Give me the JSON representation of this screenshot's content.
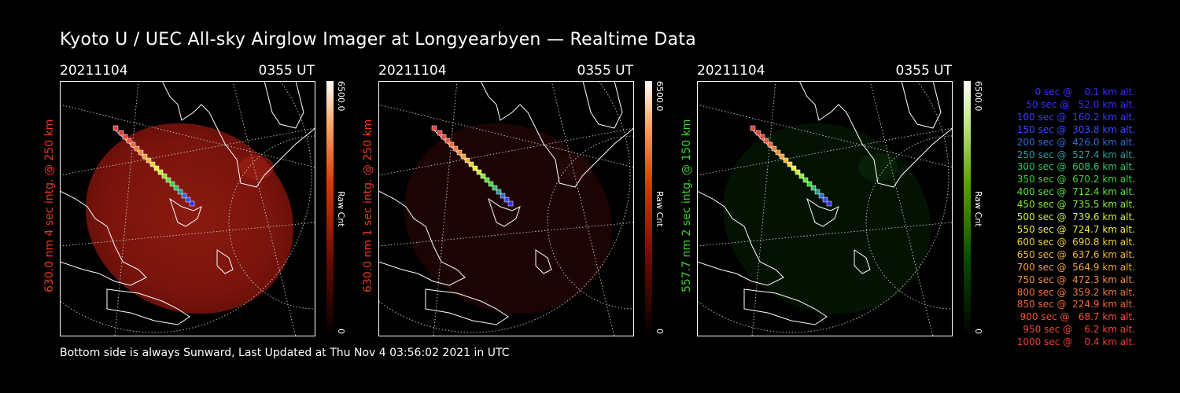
{
  "title": "Kyoto U / UEC All-sky Airglow Imager at Longyearbyen — Realtime Data",
  "footer": "Bottom side is always Sunward, Last Updated at Thu Nov  4 03:56:02 2021 in UTC",
  "panels": [
    {
      "date": "20211104",
      "time": "0355 UT",
      "side_label": "630.0 nm 4 sec intg. @ 250 km",
      "label_color": "#e83a1a",
      "cbar_max": "6500.0",
      "cbar_unit": "Raw Cnt",
      "cbar_min": "0",
      "glow": "strong-red"
    },
    {
      "date": "20211104",
      "time": "0355 UT",
      "side_label": "630.0 nm 1 sec intg. @ 250 km",
      "label_color": "#e83a1a",
      "cbar_max": "6500.0",
      "cbar_unit": "Raw Cnt",
      "cbar_min": "0",
      "glow": "faint-red"
    },
    {
      "date": "20211104",
      "time": "0355 UT",
      "side_label": "557.7 nm 2 sec intg. @ 150 km",
      "label_color": "#3ecf2a",
      "cbar_max": "6500.0",
      "cbar_unit": "Raw Cnt",
      "cbar_min": "0",
      "glow": "faint-green"
    }
  ],
  "legend": [
    {
      "text": "   0 sec @    0.1 km alt.",
      "color": "#3a2bff"
    },
    {
      "text": "  50 sec @   52.0 km alt.",
      "color": "#3a2bff"
    },
    {
      "text": " 100 sec @  160.2 km alt.",
      "color": "#3a3aff"
    },
    {
      "text": " 150 sec @  303.8 km alt.",
      "color": "#3a4aff"
    },
    {
      "text": " 200 sec @  426.0 km alt.",
      "color": "#2f6bd6"
    },
    {
      "text": " 250 sec @  527.4 km alt.",
      "color": "#2b9a9a"
    },
    {
      "text": " 300 sec @  608.6 km alt.",
      "color": "#2fc46a"
    },
    {
      "text": " 350 sec @  670.2 km alt.",
      "color": "#3ad63a"
    },
    {
      "text": " 400 sec @  712.4 km alt.",
      "color": "#5ae03a"
    },
    {
      "text": " 450 sec @  735.5 km alt.",
      "color": "#8ae83a"
    },
    {
      "text": " 500 sec @  739.6 km alt.",
      "color": "#c4ee3a"
    },
    {
      "text": " 550 sec @  724.7 km alt.",
      "color": "#eeee3a"
    },
    {
      "text": " 600 sec @  690.8 km alt.",
      "color": "#f0d23a"
    },
    {
      "text": " 650 sec @  637.6 km alt.",
      "color": "#f0b83a"
    },
    {
      "text": " 700 sec @  564.9 km alt.",
      "color": "#f0a23a"
    },
    {
      "text": " 750 sec @  472.3 km alt.",
      "color": "#f08c3a"
    },
    {
      "text": " 800 sec @  359.2 km alt.",
      "color": "#f0783a"
    },
    {
      "text": " 850 sec @  224.9 km alt.",
      "color": "#f0663a"
    },
    {
      "text": " 900 sec @   68.7 km alt.",
      "color": "#f0543a"
    },
    {
      "text": " 950 sec @    6.2 km alt.",
      "color": "#f0483a"
    },
    {
      "text": "1000 sec @    0.4 km alt.",
      "color": "#f03a3a"
    }
  ]
}
